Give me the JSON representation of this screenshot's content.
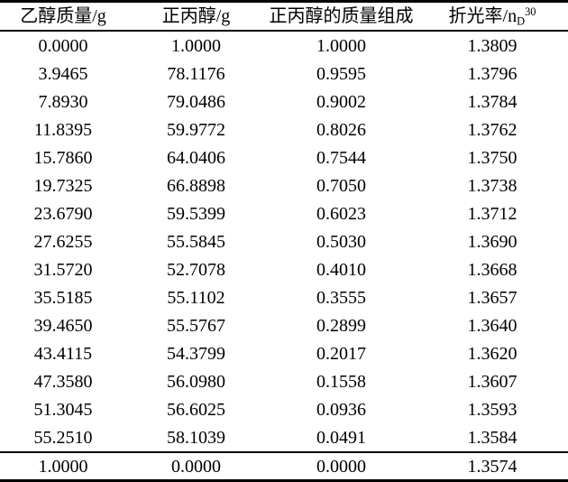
{
  "table": {
    "headers": [
      {
        "text": "乙醇质量/g"
      },
      {
        "text": "正丙醇/g"
      },
      {
        "text": "正丙醇的质量组成"
      },
      {
        "text": "折光率/n",
        "sub": "D",
        "sup": "30"
      }
    ],
    "rows": [
      [
        "0.0000",
        "1.0000",
        "1.0000",
        "1.3809"
      ],
      [
        "3.9465",
        "78.1176",
        "0.9595",
        "1.3796"
      ],
      [
        "7.8930",
        "79.0486",
        "0.9002",
        "1.3784"
      ],
      [
        "11.8395",
        "59.9772",
        "0.8026",
        "1.3762"
      ],
      [
        "15.7860",
        "64.0406",
        "0.7544",
        "1.3750"
      ],
      [
        "19.7325",
        "66.8898",
        "0.7050",
        "1.3738"
      ],
      [
        "23.6790",
        "59.5399",
        "0.6023",
        "1.3712"
      ],
      [
        "27.6255",
        "55.5845",
        "0.5030",
        "1.3690"
      ],
      [
        "31.5720",
        "52.7078",
        "0.4010",
        "1.3668"
      ],
      [
        "35.5185",
        "55.1102",
        "0.3555",
        "1.3657"
      ],
      [
        "39.4650",
        "55.5767",
        "0.2899",
        "1.3640"
      ],
      [
        "43.4115",
        "54.3799",
        "0.2017",
        "1.3620"
      ],
      [
        "47.3580",
        "56.0980",
        "0.1558",
        "1.3607"
      ],
      [
        "51.3045",
        "56.6025",
        "0.0936",
        "1.3593"
      ],
      [
        "55.2510",
        "58.1039",
        "0.0491",
        "1.3584"
      ]
    ],
    "footer_row": [
      "1.0000",
      "0.0000",
      "0.0000",
      "1.3574"
    ]
  },
  "chart_data": {
    "type": "table",
    "title": "",
    "columns": [
      "乙醇质量/g",
      "正丙醇/g",
      "正丙醇的质量组成",
      "折光率/nD30"
    ],
    "ethanol_mass_g": [
      0.0,
      3.9465,
      7.893,
      11.8395,
      15.786,
      19.7325,
      23.679,
      27.6255,
      31.572,
      35.5185,
      39.465,
      43.4115,
      47.358,
      51.3045,
      55.251,
      1.0
    ],
    "n_propanol_g": [
      1.0,
      78.1176,
      79.0486,
      59.9772,
      64.0406,
      66.8898,
      59.5399,
      55.5845,
      52.7078,
      55.1102,
      55.5767,
      54.3799,
      56.098,
      56.6025,
      58.1039,
      0.0
    ],
    "n_propanol_mass_fraction": [
      1.0,
      0.9595,
      0.9002,
      0.8026,
      0.7544,
      0.705,
      0.6023,
      0.503,
      0.401,
      0.3555,
      0.2899,
      0.2017,
      0.1558,
      0.0936,
      0.0491,
      0.0
    ],
    "refractive_index_nD30": [
      1.3809,
      1.3796,
      1.3784,
      1.3762,
      1.375,
      1.3738,
      1.3712,
      1.369,
      1.3668,
      1.3657,
      1.364,
      1.362,
      1.3607,
      1.3593,
      1.3584,
      1.3574
    ]
  },
  "colors": {
    "text": "#000000",
    "border": "#000000",
    "background": "#ffffff"
  }
}
